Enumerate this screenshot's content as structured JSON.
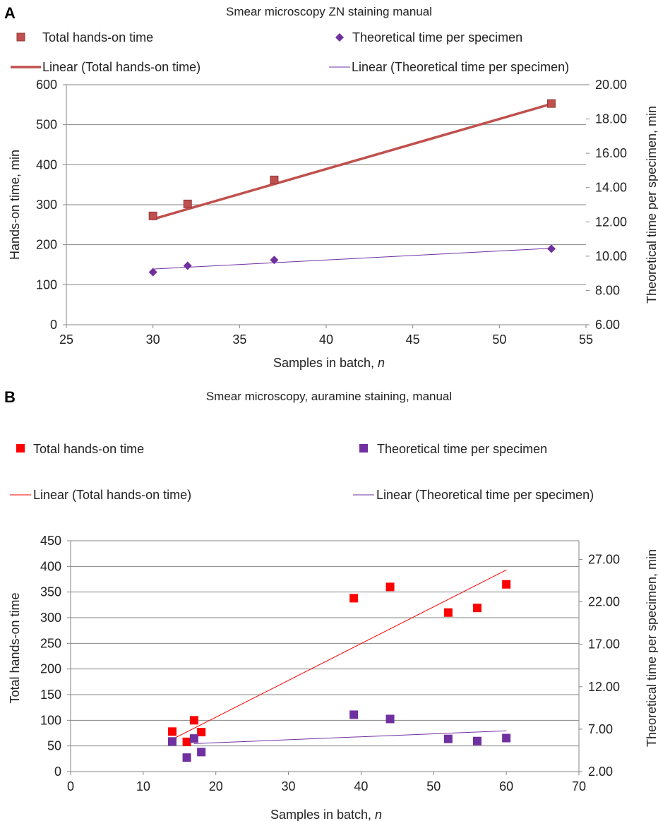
{
  "chart_data": [
    {
      "panel_letter": "A",
      "type": "scatter",
      "title": "Smear microscopy ZN staining manual",
      "xlabel": "Samples in batch, ",
      "xlabel_italic": "n",
      "ylabel": "Hands-on time, min",
      "y2label": "Theoretical time per specimen, min",
      "xlim": [
        25,
        55
      ],
      "ylim": [
        0,
        600
      ],
      "y2lim": [
        6,
        20
      ],
      "x_ticks": [
        "25",
        "30",
        "35",
        "40",
        "45",
        "50",
        "55"
      ],
      "y_ticks": [
        "0",
        "100",
        "200",
        "300",
        "400",
        "500",
        "600"
      ],
      "y2_ticks": [
        "6.00",
        "8.00",
        "10.00",
        "12.00",
        "14.00",
        "16.00",
        "18.00",
        "20.00"
      ],
      "grid": "horizontal",
      "legend_position": "top",
      "legend": {
        "total": "Total hands-on time",
        "theoretical": "Theoretical time per specimen",
        "linear_total": "Linear (Total hands-on time)",
        "linear_theoretical": "Linear (Theoretical time per specimen)"
      },
      "series": [
        {
          "name": "Total hands-on time",
          "axis": "left",
          "marker": "square",
          "color": "#c0504d",
          "x": [
            30,
            32,
            37,
            53
          ],
          "y": [
            272,
            302,
            362,
            553
          ]
        },
        {
          "name": "Theoretical time per specimen",
          "axis": "right",
          "marker": "diamond",
          "color": "#7030a0",
          "x": [
            30,
            32,
            37,
            53
          ],
          "y": [
            9.07,
            9.44,
            9.78,
            10.43
          ]
        }
      ],
      "trendlines": [
        {
          "name": "Linear (Total hands-on time)",
          "axis": "left",
          "color": "#c0504d",
          "width": 3.5,
          "x": [
            30,
            53
          ],
          "y": [
            264,
            552
          ]
        },
        {
          "name": "Linear (Theoretical time per specimen)",
          "axis": "right",
          "color": "#7030a0",
          "width": 1,
          "x": [
            30,
            53
          ],
          "y": [
            9.25,
            10.46
          ]
        }
      ]
    },
    {
      "panel_letter": "B",
      "type": "scatter",
      "title": "Smear microscopy, auramine staining, manual",
      "xlabel": "Samples in batch, ",
      "xlabel_italic": "n",
      "ylabel": "Total hands-on time",
      "y2label": "Theoretical time per specimen, min",
      "xlim": [
        0,
        70
      ],
      "ylim": [
        0,
        450
      ],
      "y2lim": [
        2,
        29.2
      ],
      "x_ticks": [
        "0",
        "10",
        "20",
        "30",
        "40",
        "50",
        "60",
        "70"
      ],
      "y_ticks": [
        "0",
        "50",
        "100",
        "150",
        "200",
        "250",
        "300",
        "350",
        "400",
        "450"
      ],
      "y2_ticks": [
        "2.00",
        "7.00",
        "12.00",
        "17.00",
        "22.00",
        "27.00"
      ],
      "grid": "horizontal",
      "legend_position": "top",
      "legend": {
        "total": "Total hands-on time",
        "theoretical": "Theoretical time per specimen",
        "linear_total": "Linear (Total hands-on time)",
        "linear_theoretical": "Linear (Theoretical time per specimen)"
      },
      "series": [
        {
          "name": "Total hands-on time",
          "axis": "left",
          "marker": "square",
          "color": "#ff0000",
          "x": [
            14,
            16,
            17,
            18,
            39,
            44,
            52,
            56,
            60
          ],
          "y": [
            78,
            58,
            100,
            77,
            338,
            360,
            310,
            319,
            365
          ]
        },
        {
          "name": "Theoretical time per specimen",
          "axis": "right",
          "marker": "square",
          "color": "#7030a0",
          "x": [
            14,
            16,
            17,
            18,
            39,
            44,
            52,
            56,
            60
          ],
          "y": [
            5.55,
            3.65,
            5.9,
            4.3,
            8.7,
            8.2,
            5.85,
            5.6,
            5.95
          ]
        }
      ],
      "trendlines": [
        {
          "name": "Linear (Total hands-on time)",
          "axis": "left",
          "color": "#ff0000",
          "width": 1,
          "x": [
            14,
            60
          ],
          "y": [
            63,
            393
          ]
        },
        {
          "name": "Linear (Theoretical time per specimen)",
          "axis": "right",
          "color": "#7030a0",
          "width": 1,
          "x": [
            17,
            60
          ],
          "y": [
            5.3,
            6.8
          ]
        }
      ]
    }
  ]
}
